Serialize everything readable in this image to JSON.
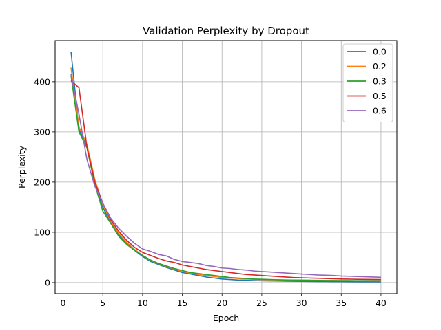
{
  "chart_data": {
    "type": "line",
    "title": "Validation Perplexity by Dropout",
    "xlabel": "Epoch",
    "ylabel": "Perplexity",
    "xlim": [
      -1,
      42
    ],
    "ylim": [
      -22,
      482
    ],
    "xticks": [
      0,
      5,
      10,
      15,
      20,
      25,
      30,
      35,
      40
    ],
    "yticks": [
      0,
      100,
      200,
      300,
      400
    ],
    "grid": true,
    "legend_position": "top-right",
    "x": [
      1,
      2,
      3,
      4,
      5,
      6,
      7,
      8,
      9,
      10,
      11,
      12,
      13,
      14,
      15,
      16,
      17,
      18,
      19,
      20,
      21,
      22,
      23,
      24,
      25,
      26,
      27,
      28,
      29,
      30,
      31,
      32,
      33,
      34,
      35,
      36,
      37,
      38,
      39,
      40
    ],
    "series": [
      {
        "name": "0.0",
        "color": "#1f77b4",
        "values": [
          460,
          305,
          270,
          195,
          150,
          118,
          95,
          78,
          64,
          52,
          42,
          36,
          30,
          25,
          20,
          17,
          14,
          11,
          9,
          7,
          6,
          5,
          4.5,
          4,
          3.5,
          3.2,
          3,
          2.8,
          2.6,
          2.4,
          2.2,
          2.1,
          2,
          1.9,
          1.8,
          1.7,
          1.6,
          1.5,
          1.5,
          1.4
        ]
      },
      {
        "name": "0.2",
        "color": "#ff7f0e",
        "values": [
          428,
          310,
          275,
          205,
          155,
          122,
          98,
          80,
          66,
          54,
          44,
          38,
          32,
          27,
          22,
          19,
          16,
          14,
          12,
          10,
          9,
          8,
          7,
          6.5,
          6,
          5.5,
          5.2,
          5,
          4.8,
          4.6,
          4.4,
          4.2,
          4,
          3.9,
          3.8,
          3.7,
          3.6,
          3.5,
          3.4,
          3.3
        ]
      },
      {
        "name": "0.3",
        "color": "#2ca02c",
        "values": [
          412,
          300,
          268,
          195,
          142,
          118,
          92,
          76,
          64,
          54,
          45,
          38,
          33,
          28,
          24,
          20,
          18,
          16,
          14,
          12,
          10,
          9,
          8,
          7,
          6.5,
          6,
          5.5,
          5.2,
          5,
          4.8,
          4.6,
          4.4,
          4.2,
          4.1,
          4,
          3.9,
          3.8,
          3.7,
          3.6,
          3.5
        ]
      },
      {
        "name": "0.5",
        "color": "#d62728",
        "values": [
          402,
          388,
          270,
          200,
          158,
          125,
          102,
          84,
          70,
          60,
          54,
          48,
          43,
          40,
          35,
          32,
          29,
          26,
          24,
          22,
          20,
          18,
          16,
          15,
          14,
          13,
          12,
          11,
          10,
          9.5,
          9,
          8.5,
          8,
          7.5,
          7,
          6.8,
          6.5,
          6.3,
          6.1,
          6
        ]
      },
      {
        "name": "0.6",
        "color": "#9467bd",
        "values": [
          415,
          335,
          245,
          192,
          158,
          128,
          108,
          92,
          78,
          67,
          62,
          56,
          53,
          46,
          42,
          40,
          38,
          34,
          32,
          29,
          28,
          26,
          25,
          23,
          22,
          21,
          20,
          19,
          18,
          17,
          16,
          15,
          14.5,
          14,
          13,
          12.5,
          12,
          11.5,
          11,
          10.5
        ]
      }
    ]
  }
}
